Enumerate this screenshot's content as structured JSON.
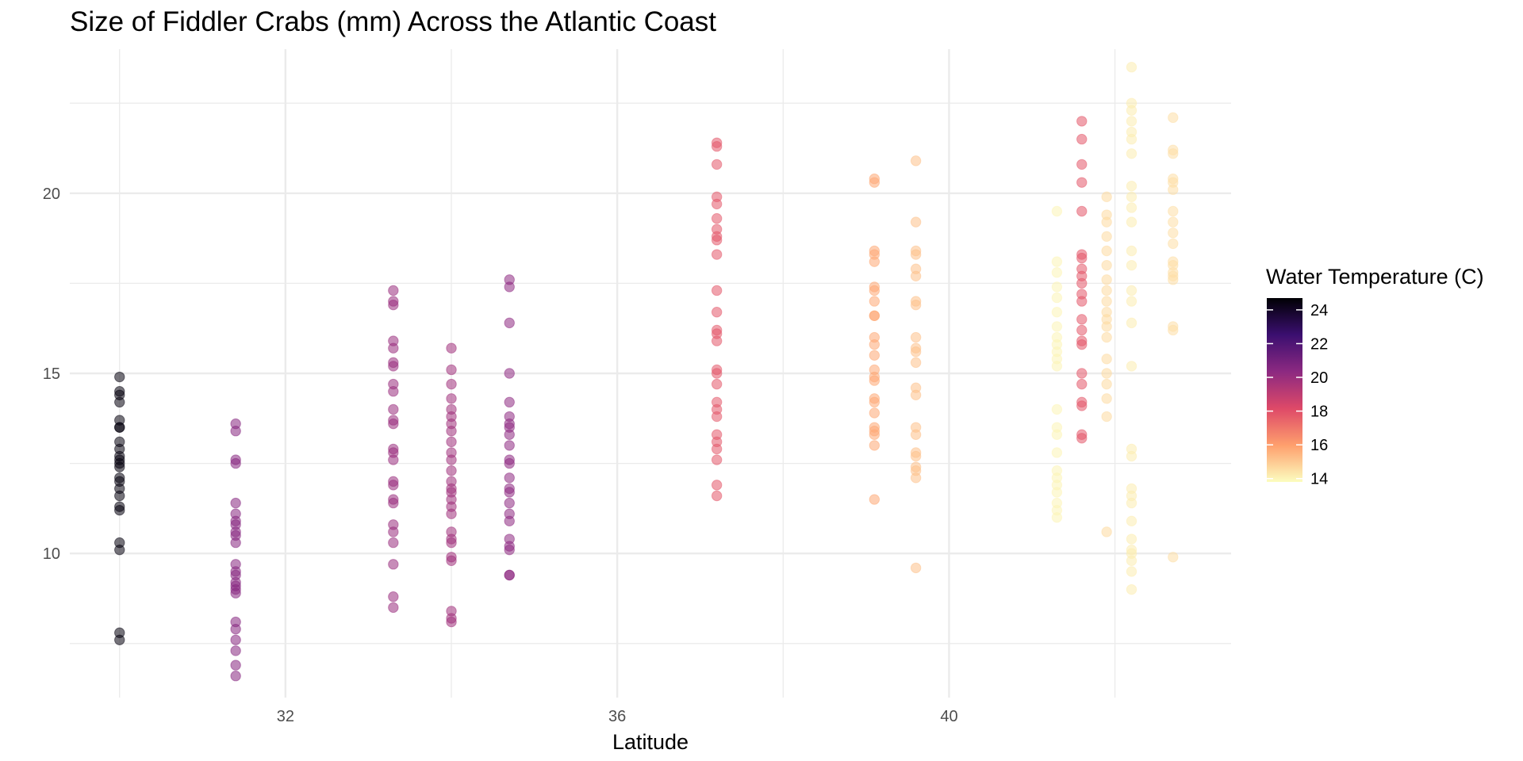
{
  "chart_data": {
    "type": "scatter",
    "title": "Size of Fiddler Crabs (mm) Across the Atlantic Coast",
    "xlabel": "Latitude",
    "ylabel": "",
    "x_ticks": [
      32,
      36,
      40
    ],
    "y_ticks": [
      10,
      15,
      20
    ],
    "xlim": [
      29.4,
      43.4
    ],
    "ylim": [
      6.0,
      24.0
    ],
    "grid": true,
    "point_opacity": 0.55,
    "legend": {
      "title": "Water Temperature (C)",
      "position": "right",
      "ticks": [
        24,
        22,
        20,
        18,
        16,
        14
      ],
      "range": [
        13.8,
        24.7
      ],
      "colors": [
        "#000004",
        "#3b0f70",
        "#8c2981",
        "#de4968",
        "#fe9f6d",
        "#fcfdbf"
      ]
    },
    "groups": [
      {
        "x": 30.0,
        "temp": 24.5,
        "y": [
          14.9,
          14.5,
          14.4,
          14.2,
          13.7,
          13.5,
          13.5,
          13.1,
          12.9,
          12.7,
          12.6,
          12.5,
          12.4,
          12.1,
          12.0,
          11.8,
          11.6,
          11.3,
          11.2,
          10.3,
          10.1,
          7.8,
          7.6
        ]
      },
      {
        "x": 31.4,
        "temp": 20.5,
        "y": [
          13.6,
          13.4,
          12.6,
          12.5,
          11.4,
          11.1,
          10.9,
          10.8,
          10.6,
          10.5,
          10.3,
          9.7,
          9.5,
          9.4,
          9.2,
          9.1,
          9.0,
          8.9,
          8.1,
          7.9,
          7.6,
          7.3,
          6.9,
          6.6
        ]
      },
      {
        "x": 33.3,
        "temp": 20.0,
        "y": [
          17.3,
          17.0,
          16.9,
          15.9,
          15.7,
          15.3,
          15.2,
          14.7,
          14.5,
          14.0,
          13.7,
          13.6,
          12.9,
          12.8,
          12.6,
          12.0,
          11.9,
          11.5,
          11.4,
          10.8,
          10.6,
          10.3,
          9.7,
          8.8,
          8.5
        ]
      },
      {
        "x": 34.0,
        "temp": 19.8,
        "y": [
          15.7,
          15.1,
          14.7,
          14.3,
          14.0,
          13.8,
          13.6,
          13.4,
          13.1,
          12.8,
          12.6,
          12.3,
          12.0,
          11.8,
          11.7,
          11.5,
          11.3,
          11.1,
          10.6,
          10.4,
          10.3,
          9.9,
          9.8,
          8.4,
          8.2,
          8.1
        ]
      },
      {
        "x": 34.7,
        "temp": 20.3,
        "y": [
          17.6,
          17.4,
          16.4,
          15.0,
          14.2,
          13.8,
          13.6,
          13.5,
          13.3,
          13.0,
          12.6,
          12.5,
          12.1,
          11.8,
          11.7,
          11.4,
          11.1,
          10.9,
          10.4,
          10.2,
          10.1,
          9.4,
          9.4
        ]
      },
      {
        "x": 37.2,
        "temp": 17.8,
        "y": [
          21.4,
          21.3,
          20.8,
          19.9,
          19.7,
          19.3,
          19.0,
          18.8,
          18.7,
          18.3,
          17.3,
          16.7,
          16.2,
          16.1,
          15.9,
          15.1,
          15.0,
          14.7,
          14.2,
          14.0,
          13.8,
          13.3,
          13.1,
          12.9,
          12.6,
          11.9,
          11.6
        ]
      },
      {
        "x": 39.1,
        "temp": 15.8,
        "y": [
          20.4,
          20.3,
          18.4,
          18.3,
          18.1,
          17.4,
          17.3,
          17.0,
          16.6,
          16.6,
          16.0,
          15.8,
          15.5,
          15.1,
          14.9,
          14.8,
          14.3,
          14.2,
          13.9,
          13.5,
          13.4,
          13.3,
          13.0,
          11.5
        ]
      },
      {
        "x": 39.6,
        "temp": 15.2,
        "y": [
          20.9,
          19.2,
          18.4,
          18.3,
          17.9,
          17.7,
          17.0,
          16.9,
          16.0,
          15.7,
          15.6,
          15.3,
          14.6,
          14.4,
          13.5,
          13.3,
          12.8,
          12.7,
          12.4,
          12.3,
          12.1,
          9.6
        ]
      },
      {
        "x": 41.3,
        "temp": 14.0,
        "y": [
          19.5,
          18.1,
          17.8,
          17.4,
          17.1,
          16.7,
          16.3,
          16.0,
          15.8,
          15.6,
          15.4,
          15.2,
          14.0,
          13.5,
          13.3,
          12.8,
          12.3,
          12.1,
          11.9,
          11.7,
          11.4,
          11.2,
          11.0
        ]
      },
      {
        "x": 41.6,
        "temp": 17.8,
        "y": [
          22.0,
          21.5,
          20.8,
          20.3,
          19.5,
          18.3,
          18.2,
          17.9,
          17.7,
          17.5,
          17.2,
          17.0,
          16.5,
          16.2,
          15.9,
          15.8,
          15.0,
          14.7,
          14.2,
          14.1,
          13.3,
          13.2
        ]
      },
      {
        "x": 41.9,
        "temp": 14.6,
        "y": [
          19.9,
          19.4,
          19.2,
          18.8,
          18.4,
          18.0,
          17.6,
          17.3,
          17.0,
          16.7,
          16.5,
          16.3,
          16.0,
          15.4,
          15.0,
          14.7,
          14.3,
          13.8,
          10.6
        ]
      },
      {
        "x": 42.2,
        "temp": 14.2,
        "y": [
          23.5,
          22.5,
          22.3,
          22.0,
          21.7,
          21.5,
          21.1,
          20.2,
          19.9,
          19.6,
          19.2,
          18.4,
          18.0,
          17.3,
          17.0,
          16.4,
          15.2,
          12.9,
          12.7,
          11.8,
          11.6,
          11.4,
          10.9,
          10.4,
          10.1,
          10.0,
          9.8,
          9.5,
          9.0
        ]
      },
      {
        "x": 42.7,
        "temp": 14.5,
        "y": [
          22.1,
          21.2,
          21.1,
          20.4,
          20.3,
          20.1,
          19.5,
          19.2,
          18.9,
          18.6,
          18.1,
          18.0,
          17.8,
          17.7,
          17.6,
          16.3,
          16.2,
          9.9
        ]
      }
    ]
  }
}
